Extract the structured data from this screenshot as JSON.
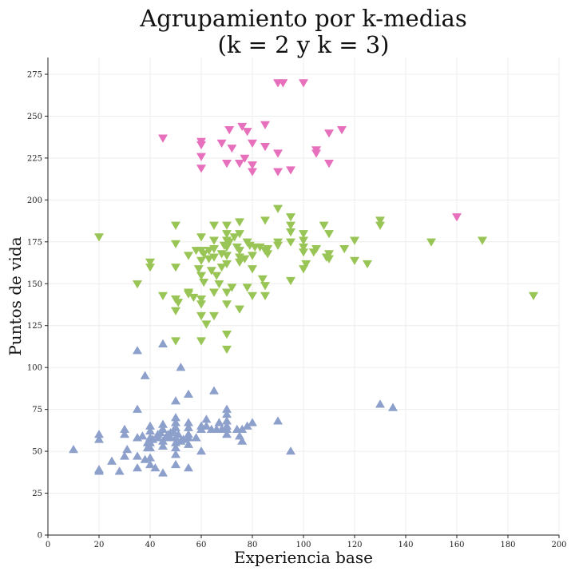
{
  "chart_data": {
    "type": "scatter",
    "title_line1": "Agrupamiento por k-medias",
    "title_line2": "(k = 2 y k = 3)",
    "xlabel": "Experiencia base",
    "ylabel": "Puntos de vida",
    "xlim": [
      0,
      200
    ],
    "ylim": [
      0,
      285
    ],
    "x_ticks": [
      0,
      20,
      40,
      60,
      80,
      100,
      120,
      140,
      160,
      180,
      200
    ],
    "y_ticks": [
      0,
      25,
      50,
      75,
      100,
      125,
      150,
      175,
      200,
      225,
      250,
      275
    ],
    "grid": true,
    "series": [
      {
        "marker": "triangle-up",
        "color": "#8da0cb",
        "points": [
          [
            10,
            51
          ],
          [
            20,
            57
          ],
          [
            20,
            60
          ],
          [
            20,
            38
          ],
          [
            20,
            39
          ],
          [
            25,
            44
          ],
          [
            28,
            38
          ],
          [
            30,
            47
          ],
          [
            30,
            60
          ],
          [
            30,
            63
          ],
          [
            31,
            51
          ],
          [
            35,
            40
          ],
          [
            35,
            47
          ],
          [
            35,
            58
          ],
          [
            35,
            75
          ],
          [
            35,
            110
          ],
          [
            37,
            59
          ],
          [
            38,
            45
          ],
          [
            38,
            95
          ],
          [
            39,
            52
          ],
          [
            39,
            55
          ],
          [
            40,
            42
          ],
          [
            40,
            46
          ],
          [
            40,
            52
          ],
          [
            40,
            55
          ],
          [
            40,
            58
          ],
          [
            40,
            62
          ],
          [
            40,
            65
          ],
          [
            41,
            57
          ],
          [
            42,
            40
          ],
          [
            43,
            58
          ],
          [
            43,
            60
          ],
          [
            44,
            61
          ],
          [
            45,
            37
          ],
          [
            45,
            53
          ],
          [
            45,
            56
          ],
          [
            45,
            63
          ],
          [
            45,
            66
          ],
          [
            45,
            114
          ],
          [
            46,
            58
          ],
          [
            47,
            60
          ],
          [
            48,
            61
          ],
          [
            48,
            58
          ],
          [
            49,
            62
          ],
          [
            50,
            42
          ],
          [
            50,
            48
          ],
          [
            50,
            52
          ],
          [
            50,
            55
          ],
          [
            50,
            58
          ],
          [
            50,
            64
          ],
          [
            50,
            67
          ],
          [
            50,
            70
          ],
          [
            50,
            80
          ],
          [
            51,
            60
          ],
          [
            52,
            56
          ],
          [
            52,
            100
          ],
          [
            53,
            57
          ],
          [
            55,
            40
          ],
          [
            55,
            54
          ],
          [
            55,
            58
          ],
          [
            55,
            60
          ],
          [
            55,
            64
          ],
          [
            55,
            67
          ],
          [
            55,
            84
          ],
          [
            58,
            58
          ],
          [
            60,
            50
          ],
          [
            60,
            63
          ],
          [
            60,
            65
          ],
          [
            62,
            65
          ],
          [
            62,
            69
          ],
          [
            64,
            63
          ],
          [
            65,
            86
          ],
          [
            66,
            63
          ],
          [
            67,
            67
          ],
          [
            68,
            63
          ],
          [
            70,
            60
          ],
          [
            70,
            63
          ],
          [
            70,
            65
          ],
          [
            70,
            68
          ],
          [
            70,
            72
          ],
          [
            70,
            75
          ],
          [
            74,
            63
          ],
          [
            75,
            59
          ],
          [
            76,
            56
          ],
          [
            76,
            63
          ],
          [
            78,
            65
          ],
          [
            80,
            67
          ],
          [
            90,
            68
          ],
          [
            95,
            50
          ],
          [
            130,
            78
          ],
          [
            135,
            76
          ]
        ]
      },
      {
        "marker": "triangle-down",
        "color": "#98c556",
        "points": [
          [
            20,
            178
          ],
          [
            35,
            150
          ],
          [
            40,
            160
          ],
          [
            40,
            163
          ],
          [
            45,
            143
          ],
          [
            50,
            185
          ],
          [
            50,
            174
          ],
          [
            50,
            160
          ],
          [
            50,
            141
          ],
          [
            50,
            134
          ],
          [
            50,
            116
          ],
          [
            51,
            139
          ],
          [
            55,
            144
          ],
          [
            55,
            145
          ],
          [
            55,
            167
          ],
          [
            57,
            142
          ],
          [
            58,
            170
          ],
          [
            59,
            159
          ],
          [
            60,
            178
          ],
          [
            60,
            170
          ],
          [
            60,
            164
          ],
          [
            60,
            155
          ],
          [
            60,
            141
          ],
          [
            60,
            138
          ],
          [
            60,
            131
          ],
          [
            60,
            116
          ],
          [
            61,
            151
          ],
          [
            61,
            168
          ],
          [
            62,
            126
          ],
          [
            63,
            170
          ],
          [
            63,
            165
          ],
          [
            64,
            158
          ],
          [
            65,
            185
          ],
          [
            65,
            176
          ],
          [
            65,
            171
          ],
          [
            65,
            166
          ],
          [
            65,
            145
          ],
          [
            65,
            131
          ],
          [
            66,
            155
          ],
          [
            67,
            150
          ],
          [
            68,
            160
          ],
          [
            68,
            168
          ],
          [
            69,
            173
          ],
          [
            70,
            185
          ],
          [
            70,
            180
          ],
          [
            70,
            176
          ],
          [
            70,
            172
          ],
          [
            70,
            167
          ],
          [
            70,
            162
          ],
          [
            70,
            145
          ],
          [
            70,
            138
          ],
          [
            70,
            120
          ],
          [
            70,
            111
          ],
          [
            71,
            175
          ],
          [
            72,
            148
          ],
          [
            73,
            178
          ],
          [
            74,
            172
          ],
          [
            75,
            187
          ],
          [
            75,
            180
          ],
          [
            75,
            170
          ],
          [
            75,
            166
          ],
          [
            75,
            163
          ],
          [
            75,
            135
          ],
          [
            77,
            165
          ],
          [
            78,
            175
          ],
          [
            78,
            148
          ],
          [
            79,
            173
          ],
          [
            80,
            167
          ],
          [
            80,
            159
          ],
          [
            80,
            143
          ],
          [
            81,
            172
          ],
          [
            83,
            172
          ],
          [
            84,
            153
          ],
          [
            85,
            188
          ],
          [
            85,
            170
          ],
          [
            85,
            149
          ],
          [
            85,
            143
          ],
          [
            86,
            168
          ],
          [
            86,
            171
          ],
          [
            90,
            195
          ],
          [
            90,
            175
          ],
          [
            90,
            173
          ],
          [
            95,
            190
          ],
          [
            95,
            185
          ],
          [
            95,
            181
          ],
          [
            95,
            175
          ],
          [
            95,
            152
          ],
          [
            100,
            180
          ],
          [
            100,
            176
          ],
          [
            100,
            172
          ],
          [
            100,
            169
          ],
          [
            100,
            159
          ],
          [
            101,
            162
          ],
          [
            104,
            169
          ],
          [
            105,
            171
          ],
          [
            108,
            185
          ],
          [
            109,
            166
          ],
          [
            110,
            180
          ],
          [
            110,
            168
          ],
          [
            110,
            165
          ],
          [
            116,
            171
          ],
          [
            120,
            176
          ],
          [
            120,
            164
          ],
          [
            125,
            162
          ],
          [
            130,
            188
          ],
          [
            130,
            185
          ],
          [
            150,
            175
          ],
          [
            170,
            176
          ],
          [
            190,
            143
          ]
        ]
      },
      {
        "marker": "triangle-down",
        "color": "#e770bd",
        "points": [
          [
            45,
            237
          ],
          [
            60,
            235
          ],
          [
            60,
            233
          ],
          [
            60,
            226
          ],
          [
            60,
            219
          ],
          [
            68,
            234
          ],
          [
            70,
            222
          ],
          [
            71,
            242
          ],
          [
            72,
            231
          ],
          [
            75,
            222
          ],
          [
            76,
            244
          ],
          [
            77,
            225
          ],
          [
            78,
            241
          ],
          [
            80,
            234
          ],
          [
            80,
            221
          ],
          [
            80,
            217
          ],
          [
            85,
            245
          ],
          [
            85,
            232
          ],
          [
            90,
            270
          ],
          [
            90,
            228
          ],
          [
            90,
            217
          ],
          [
            92,
            270
          ],
          [
            95,
            218
          ],
          [
            100,
            270
          ],
          [
            105,
            230
          ],
          [
            105,
            228
          ],
          [
            110,
            240
          ],
          [
            110,
            222
          ],
          [
            115,
            242
          ],
          [
            160,
            190
          ]
        ]
      }
    ]
  }
}
